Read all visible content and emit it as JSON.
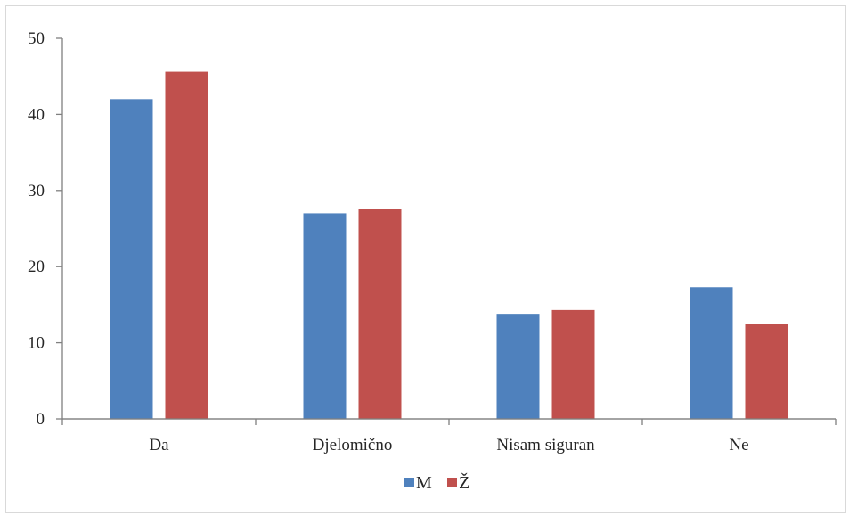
{
  "chart_data": {
    "type": "bar",
    "title": "",
    "xlabel": "",
    "ylabel": "",
    "categories": [
      "Da",
      "Djelomično",
      "Nisam siguran",
      "Ne"
    ],
    "series": [
      {
        "name": "M",
        "values": [
          42,
          27,
          13.8,
          17.3
        ],
        "color": "#4f81bd"
      },
      {
        "name": "Ž",
        "values": [
          45.6,
          27.6,
          14.3,
          12.5
        ],
        "color": "#c0504d"
      }
    ],
    "ylim": [
      0,
      50
    ],
    "yticks": [
      "0",
      "10",
      "20",
      "30",
      "40",
      "50"
    ],
    "grid": false,
    "legend": "bottom-center"
  }
}
